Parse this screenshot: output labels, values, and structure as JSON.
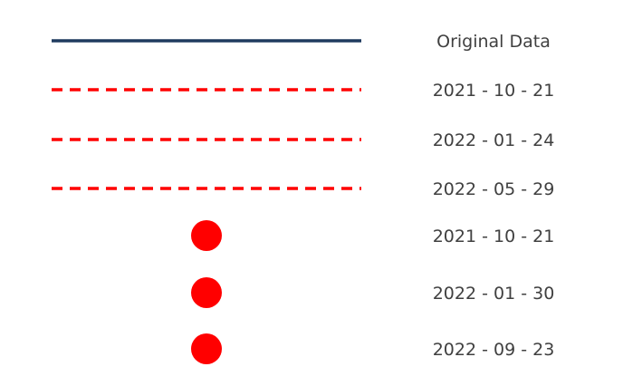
{
  "chart_data": {
    "type": "legend",
    "colors": {
      "original": "#1f3a5f",
      "highlight": "#ff0000",
      "label": "#404040"
    },
    "entries": [
      {
        "kind": "line-solid",
        "label": "Original Data",
        "color": "#1f3a5f"
      },
      {
        "kind": "line-dashed",
        "label": "2021 - 10 - 21",
        "color": "#ff0000"
      },
      {
        "kind": "line-dashed",
        "label": "2022 - 01 - 24",
        "color": "#ff0000"
      },
      {
        "kind": "line-dashed",
        "label": "2022 - 05 - 29",
        "color": "#ff0000"
      },
      {
        "kind": "marker-circle",
        "label": "2021 - 10 - 21",
        "color": "#ff0000"
      },
      {
        "kind": "marker-circle",
        "label": "2022 - 01 - 30",
        "color": "#ff0000"
      },
      {
        "kind": "marker-circle",
        "label": "2022 - 09 - 23",
        "color": "#ff0000"
      }
    ]
  }
}
